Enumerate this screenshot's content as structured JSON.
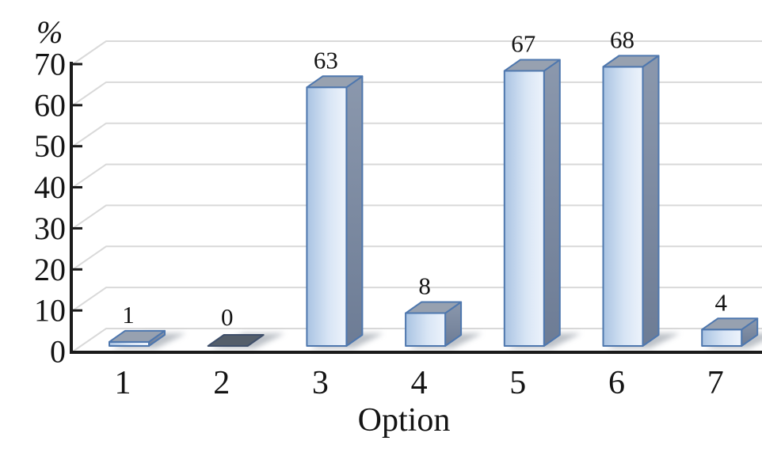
{
  "chart_data": {
    "type": "bar",
    "style": "3d",
    "title": "",
    "xlabel": "Option",
    "ylabel": "%",
    "categories": [
      "1",
      "2",
      "3",
      "4",
      "5",
      "6",
      "7"
    ],
    "values": [
      1,
      0,
      63,
      8,
      67,
      68,
      4
    ],
    "value_labels": [
      "1",
      "0",
      "63",
      "8",
      "67",
      "68",
      "4"
    ],
    "yticks": [
      0,
      10,
      20,
      30,
      40,
      50,
      60,
      70
    ],
    "ylim": [
      0,
      70
    ],
    "grid": true,
    "legend": false,
    "colors": {
      "text": "#141414",
      "axis": "#1a1a1a",
      "gridline": "#d9d9d9",
      "bar_border": "#4e77ae",
      "bar_front_left": "#a9c3e2",
      "bar_front_mid": "#d8e5f5",
      "bar_front_right": "#edf3fb",
      "bar_top": "#97a1b0",
      "bar_side_top": "#8b98ad",
      "bar_side_bottom": "#6d7c95",
      "zero_bar_fill": "#545e6a",
      "zero_bar_border": "#3f4f6a",
      "shadow": "#7c8592"
    }
  }
}
